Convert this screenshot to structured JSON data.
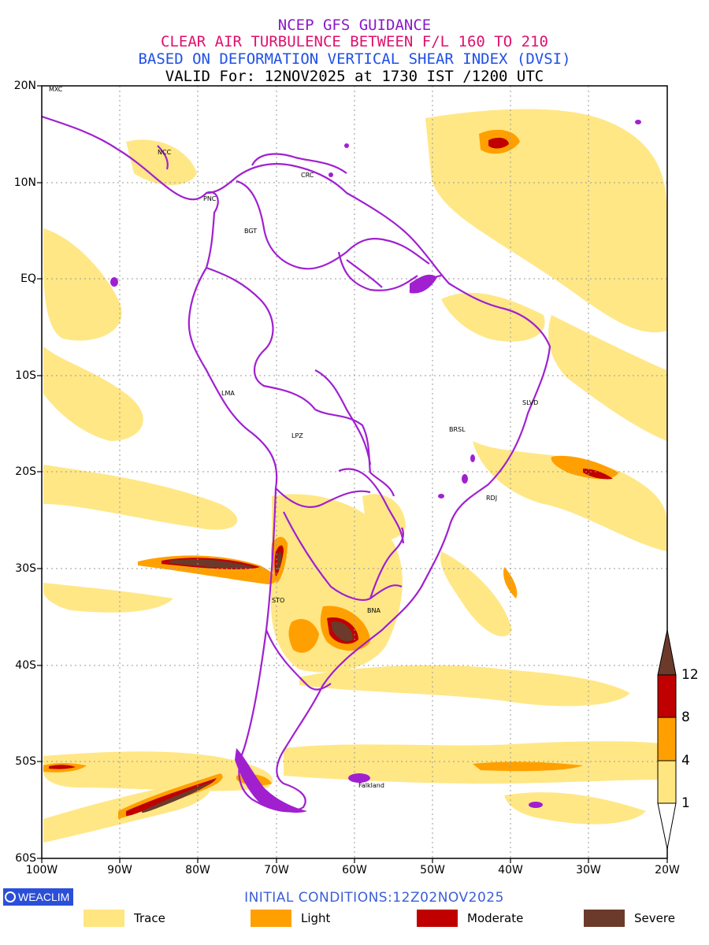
{
  "header": {
    "line1": "NCEP GFS GUIDANCE",
    "line2": "CLEAR AIR TURBULENCE BETWEEN F/L 160 TO 210",
    "line3": "BASED ON DEFORMATION VERTICAL SHEAR INDEX (DVSI)",
    "line4": "VALID For: 12NOV2025 at 1730 IST /1200 UTC"
  },
  "axes": {
    "lat_labels": [
      "20N",
      "10N",
      "EQ",
      "10S",
      "20S",
      "30S",
      "40S",
      "50S",
      "60S"
    ],
    "lon_labels": [
      "100W",
      "90W",
      "80W",
      "70W",
      "60W",
      "50W",
      "40W",
      "30W",
      "20W"
    ]
  },
  "stations": [
    {
      "name": "MXC"
    },
    {
      "name": "NCC"
    },
    {
      "name": "CRC"
    },
    {
      "name": "PNC"
    },
    {
      "name": "BGT"
    },
    {
      "name": "LMA"
    },
    {
      "name": "LPZ"
    },
    {
      "name": "BRSL"
    },
    {
      "name": "SLVD"
    },
    {
      "name": "RDJ"
    },
    {
      "name": "STO"
    },
    {
      "name": "BNA"
    },
    {
      "name": "Falkland"
    }
  ],
  "colorbar": {
    "ticks": [
      "1",
      "4",
      "8",
      "12"
    ],
    "colors": [
      "#ffe680",
      "#ffa000",
      "#c00000",
      "#6b3a2a"
    ]
  },
  "footer": {
    "logo_text": "WEACLIM",
    "initial_conditions": "INITIAL CONDITIONS:12Z02NOV2025"
  },
  "legend": [
    {
      "label": "Trace",
      "color": "#ffe680"
    },
    {
      "label": "Light",
      "color": "#ffa000"
    },
    {
      "label": "Moderate",
      "color": "#c00000"
    },
    {
      "label": "Severe",
      "color": "#6b3a2a"
    }
  ]
}
